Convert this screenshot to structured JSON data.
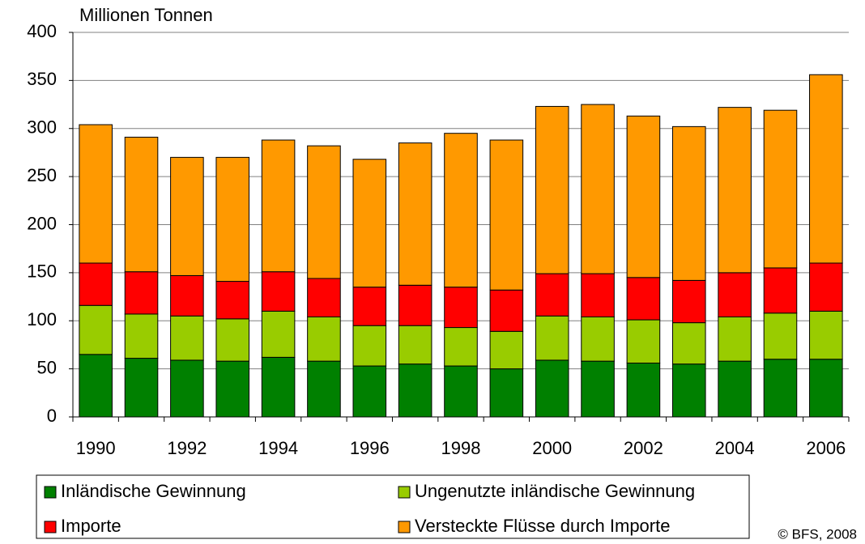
{
  "chart_data": {
    "type": "stacked_bar",
    "y_axis_label": "Millionen Tonnen",
    "categories": [
      "1990",
      null,
      "1992",
      null,
      "1994",
      null,
      "1996",
      null,
      "1998",
      null,
      "2000",
      null,
      "2002",
      null,
      "2004",
      null,
      "2006"
    ],
    "series": [
      {
        "name": "Inländische Gewinnung",
        "color": "#008000",
        "values": [
          65,
          61,
          59,
          58,
          62,
          58,
          53,
          55,
          53,
          50,
          59,
          58,
          56,
          55,
          58,
          60,
          60
        ]
      },
      {
        "name": "Ungenutzte inländische Gewinnung",
        "color": "#99cc00",
        "values": [
          51,
          46,
          46,
          44,
          48,
          46,
          42,
          40,
          40,
          39,
          46,
          46,
          45,
          43,
          46,
          48,
          50
        ]
      },
      {
        "name": "Importe",
        "color": "#ff0000",
        "values": [
          44,
          44,
          42,
          39,
          41,
          40,
          40,
          42,
          42,
          43,
          44,
          45,
          44,
          44,
          46,
          47,
          50
        ]
      },
      {
        "name": "Versteckte Flüsse durch Importe",
        "color": "#ff9900",
        "values": [
          144,
          140,
          123,
          129,
          137,
          138,
          133,
          148,
          160,
          156,
          174,
          176,
          168,
          160,
          172,
          164,
          196
        ]
      }
    ],
    "ylim": [
      0,
      400
    ],
    "yticks": [
      0,
      50,
      100,
      150,
      200,
      250,
      300,
      350,
      400
    ],
    "grid": true,
    "source": "© BFS, 2008"
  }
}
